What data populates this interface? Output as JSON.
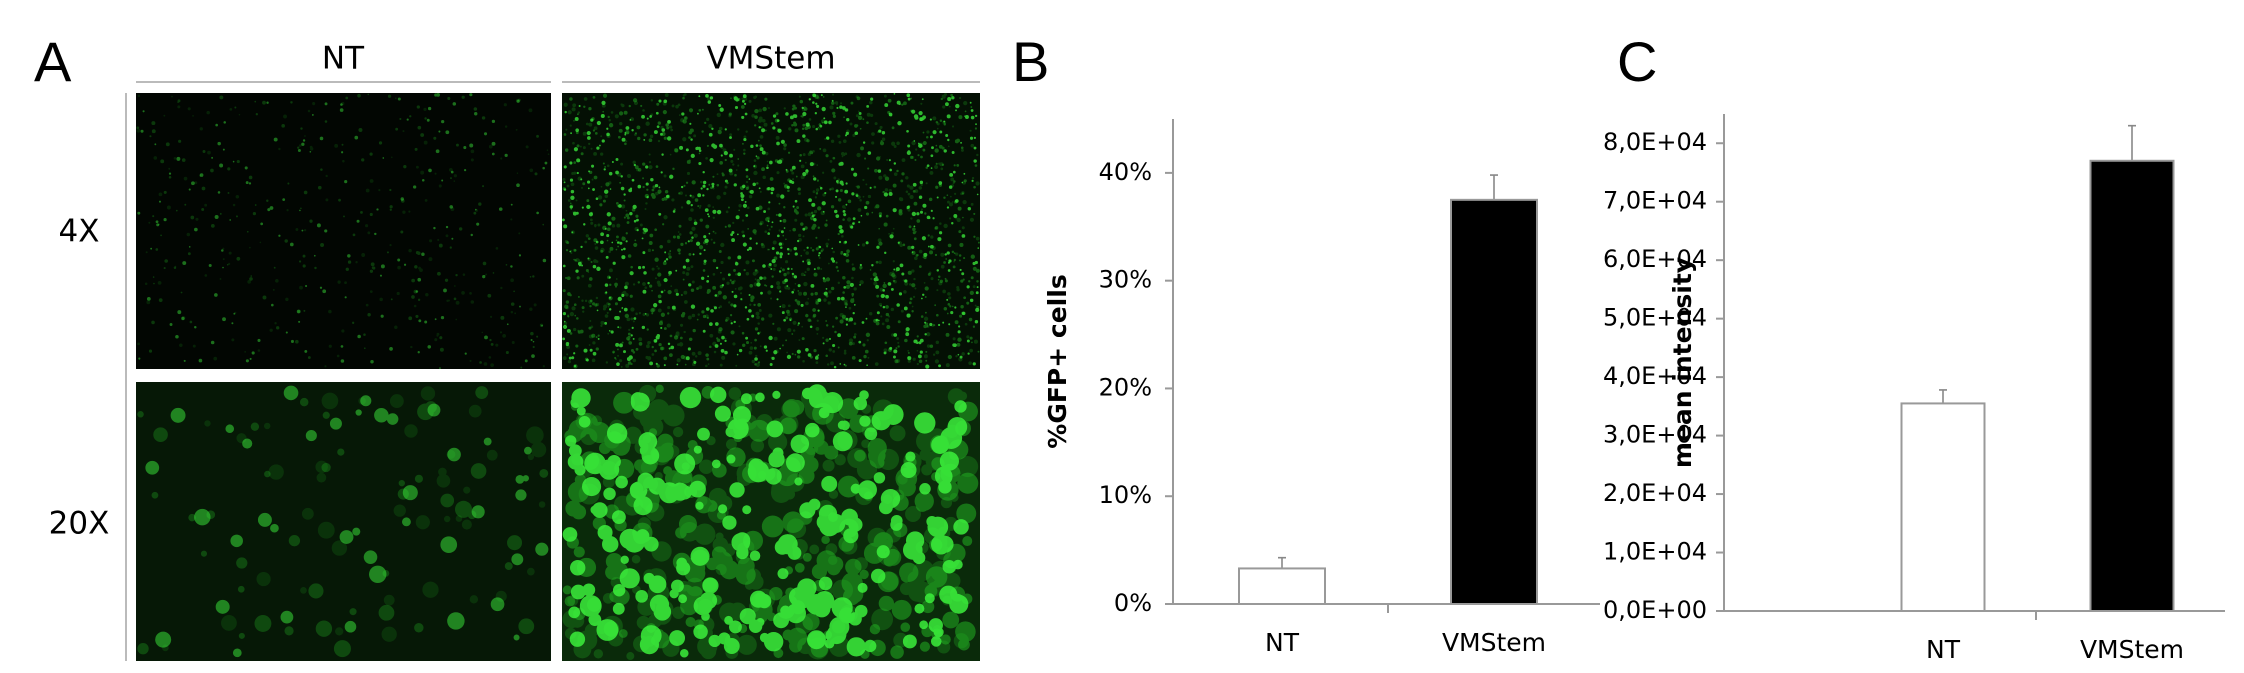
{
  "figure_a": {
    "panel_label": "A",
    "columns": [
      "NT",
      "VMStem"
    ],
    "rows": [
      "4X",
      "20X"
    ]
  },
  "chart_data": [
    {
      "type": "bar",
      "panel_label": "B",
      "y_label": "%GFP+ cells",
      "categories": [
        "NT",
        "VMStem"
      ],
      "values": [
        3.3,
        37.5
      ],
      "errors": [
        1.0,
        2.3
      ],
      "colors": [
        "#ffffff",
        "#000000"
      ],
      "ylim": [
        0,
        45
      ],
      "yticks": [
        {
          "value": 0,
          "label": "0%"
        },
        {
          "value": 10,
          "label": "10%"
        },
        {
          "value": 20,
          "label": "20%"
        },
        {
          "value": 30,
          "label": "30%"
        },
        {
          "value": 40,
          "label": "40%"
        }
      ]
    },
    {
      "type": "bar",
      "panel_label": "C",
      "y_label": "mean intensity",
      "categories": [
        "NT",
        "VMStem"
      ],
      "values": [
        35500,
        77000
      ],
      "errors": [
        2300,
        6000
      ],
      "colors": [
        "#ffffff",
        "#000000"
      ],
      "ylim": [
        0,
        85000
      ],
      "yticks": [
        {
          "value": 0,
          "label": "0,0E+00"
        },
        {
          "value": 10000,
          "label": "1,0E+04"
        },
        {
          "value": 20000,
          "label": "2,0E+04"
        },
        {
          "value": 30000,
          "label": "3,0E+04"
        },
        {
          "value": 40000,
          "label": "4,0E+04"
        },
        {
          "value": 50000,
          "label": "5,0E+04"
        },
        {
          "value": 60000,
          "label": "6,0E+04"
        },
        {
          "value": 70000,
          "label": "7,0E+04"
        },
        {
          "value": 80000,
          "label": "8,0E+04"
        }
      ]
    }
  ]
}
